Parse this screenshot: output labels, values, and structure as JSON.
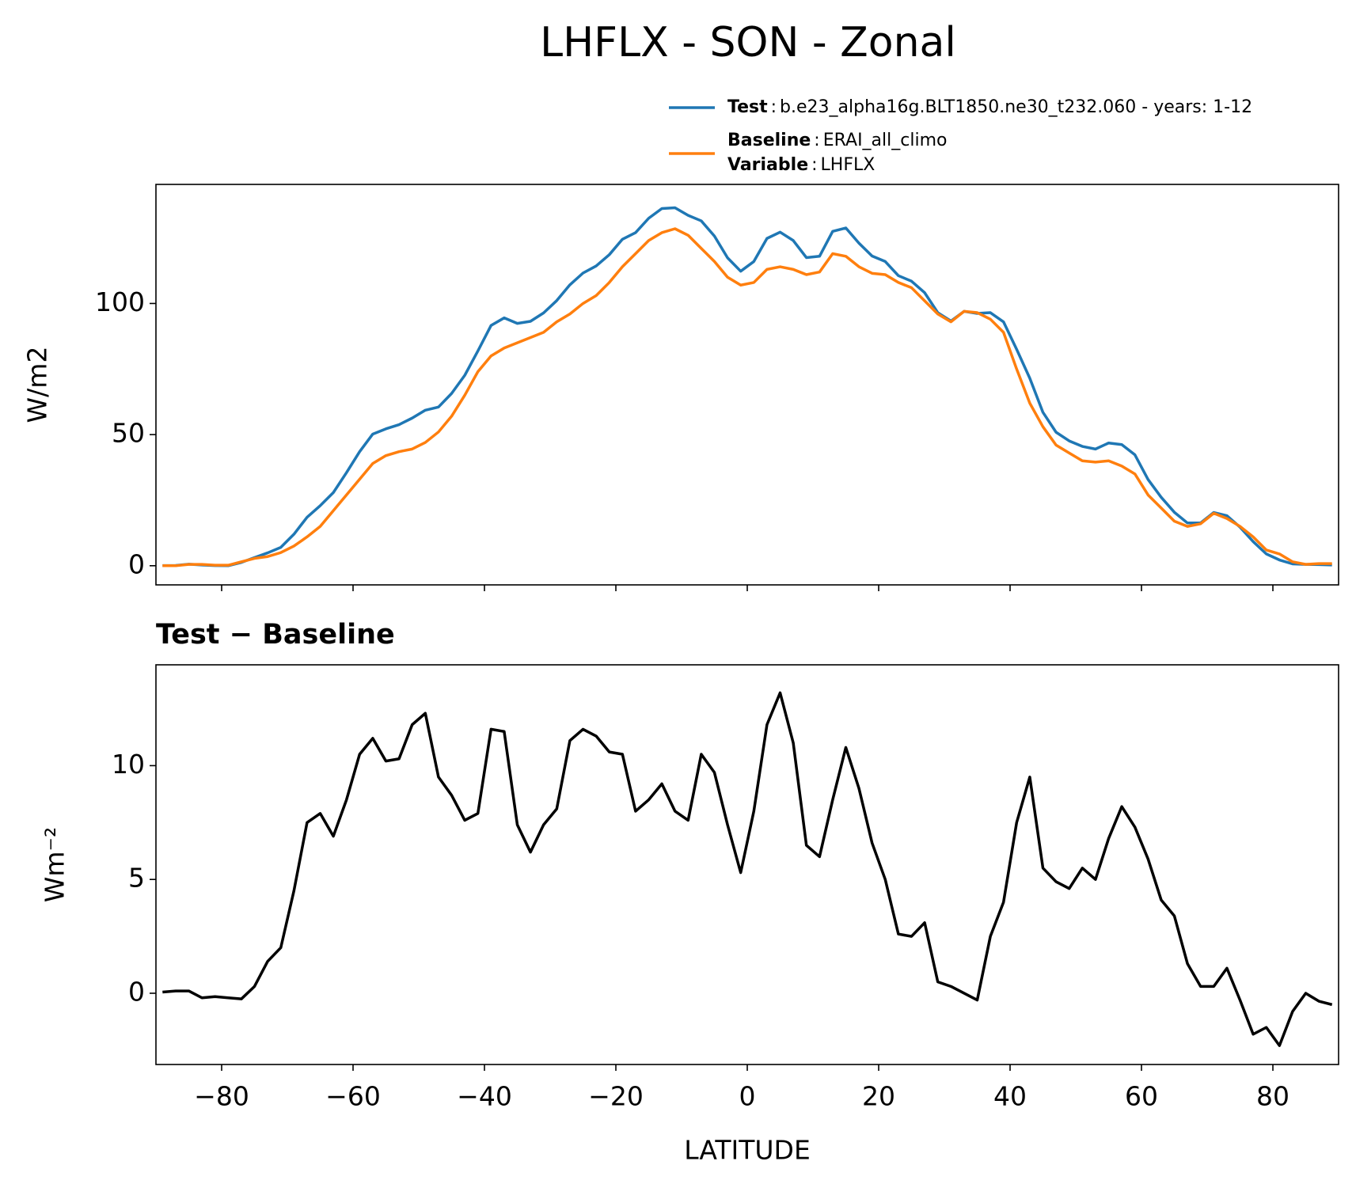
{
  "title": "LHFLX - SON - Zonal",
  "legend": {
    "separator": ":",
    "extra": {
      "name": "Variable",
      "description": "LHFLX"
    }
  },
  "chart_data": [
    {
      "type": "line",
      "ylabel": "W/m2",
      "x": [
        -89,
        -87,
        -85,
        -83,
        -81,
        -79,
        -77,
        -75,
        -73,
        -71,
        -69,
        -67,
        -65,
        -63,
        -61,
        -59,
        -57,
        -55,
        -53,
        -51,
        -49,
        -47,
        -45,
        -43,
        -41,
        -39,
        -37,
        -35,
        -33,
        -31,
        -29,
        -27,
        -25,
        -23,
        -21,
        -19,
        -17,
        -15,
        -13,
        -11,
        -9,
        -7,
        -5,
        -3,
        -1,
        1,
        3,
        5,
        7,
        9,
        11,
        13,
        15,
        17,
        19,
        21,
        23,
        25,
        27,
        29,
        31,
        33,
        35,
        37,
        39,
        41,
        43,
        45,
        47,
        49,
        51,
        53,
        55,
        57,
        59,
        61,
        63,
        65,
        67,
        69,
        71,
        73,
        75,
        77,
        79,
        81,
        83,
        85,
        87,
        89
      ],
      "series": [
        {
          "name": "Test",
          "description": "b.e23_alpha16g.BLT1850.ne30_t232.060 - years: 1-12",
          "color": "#1f77b4",
          "values": [
            0.05,
            0.1,
            0.6,
            0.3,
            0.05,
            0,
            1.25,
            3.1,
            4.9,
            7.0,
            12,
            18.5,
            22.9,
            27.9,
            35.5,
            43.5,
            50.2,
            52.2,
            53.8,
            56.3,
            59.3,
            60.5,
            65.7,
            72.6,
            81.9,
            91.6,
            94.5,
            92.4,
            93.2,
            96.4,
            101.1,
            107.1,
            111.6,
            114.3,
            118.6,
            124.5,
            127,
            132.5,
            136.2,
            136.5,
            133.6,
            131.5,
            125.7,
            117.4,
            112.3,
            116,
            124.8,
            127.2,
            124,
            117.5,
            118,
            127.5,
            128.8,
            123,
            118.1,
            116,
            110.6,
            108.5,
            104.1,
            96.5,
            93.3,
            97,
            96.2,
            96.5,
            93,
            82.5,
            71.5,
            58.5,
            50.9,
            47.6,
            45.5,
            44.5,
            46.8,
            46.2,
            42.3,
            32.9,
            26.1,
            20.4,
            16.3,
            16.3,
            20.3,
            19.1,
            14.7,
            9.2,
            4.5,
            2.2,
            0.7,
            0.5,
            0.45,
            0.3
          ]
        },
        {
          "name": "Baseline",
          "description": "ERAI_all_climo",
          "color": "#ff7f0e",
          "values": [
            0,
            0,
            0.5,
            0.5,
            0.2,
            0.2,
            1.5,
            2.8,
            3.5,
            5,
            7.5,
            11,
            15,
            21,
            27,
            33,
            39,
            42,
            43.5,
            44.5,
            47,
            51,
            57,
            65,
            74,
            80,
            83,
            85,
            87,
            89,
            93,
            96,
            100,
            103,
            108,
            114,
            119,
            124,
            127,
            128.5,
            126,
            121,
            116,
            110,
            107,
            108,
            113,
            114,
            113,
            111,
            112,
            119,
            118,
            114,
            111.5,
            111,
            108,
            106,
            101,
            96,
            93,
            97,
            96.5,
            94,
            89,
            75,
            62,
            53,
            46,
            43,
            40,
            39.5,
            40,
            38,
            35,
            27,
            22,
            17,
            15,
            16,
            20,
            18,
            15,
            11,
            6,
            4.5,
            1.5,
            0.5,
            0.8,
            0.8
          ]
        }
      ],
      "xlim": [
        -90,
        90
      ],
      "xticks": [
        -80,
        -60,
        -40,
        -20,
        0,
        20,
        40,
        60,
        80
      ],
      "ylim": [
        -7.3,
        145.4
      ],
      "yticks": [
        0,
        50,
        100
      ]
    },
    {
      "type": "line",
      "title": "Test − Baseline",
      "ylabel": "Wm⁻²",
      "xlabel": "LATITUDE",
      "x": [
        -89,
        -87,
        -85,
        -83,
        -81,
        -79,
        -77,
        -75,
        -73,
        -71,
        -69,
        -67,
        -65,
        -63,
        -61,
        -59,
        -57,
        -55,
        -53,
        -51,
        -49,
        -47,
        -45,
        -43,
        -41,
        -39,
        -37,
        -35,
        -33,
        -31,
        -29,
        -27,
        -25,
        -23,
        -21,
        -19,
        -17,
        -15,
        -13,
        -11,
        -9,
        -7,
        -5,
        -3,
        -1,
        1,
        3,
        5,
        7,
        9,
        11,
        13,
        15,
        17,
        19,
        21,
        23,
        25,
        27,
        29,
        31,
        33,
        35,
        37,
        39,
        41,
        43,
        45,
        47,
        49,
        51,
        53,
        55,
        57,
        59,
        61,
        63,
        65,
        67,
        69,
        71,
        73,
        75,
        77,
        79,
        81,
        83,
        85,
        87,
        89
      ],
      "series": [
        {
          "color": "#000000",
          "values": [
            0.05,
            0.1,
            0.1,
            -0.2,
            -0.15,
            -0.2,
            -0.25,
            0.3,
            1.4,
            2.0,
            4.5,
            7.5,
            7.9,
            6.9,
            8.5,
            10.5,
            11.2,
            10.2,
            10.3,
            11.8,
            12.3,
            9.5,
            8.7,
            7.6,
            7.9,
            11.6,
            11.5,
            7.4,
            6.2,
            7.4,
            8.1,
            11.1,
            11.6,
            11.3,
            10.6,
            10.5,
            8.0,
            8.5,
            9.2,
            8.0,
            7.6,
            10.5,
            9.7,
            7.4,
            5.3,
            8.0,
            11.8,
            13.2,
            11.0,
            6.5,
            6.0,
            8.5,
            10.8,
            9.0,
            6.6,
            5.0,
            2.6,
            2.5,
            3.1,
            0.5,
            0.3,
            0.0,
            -0.3,
            2.5,
            4.0,
            7.5,
            9.5,
            5.5,
            4.9,
            4.6,
            5.5,
            5.0,
            6.8,
            8.2,
            7.3,
            5.9,
            4.1,
            3.4,
            1.3,
            0.3,
            0.3,
            1.1,
            -0.3,
            -1.8,
            -1.5,
            -2.3,
            -0.8,
            0.0,
            -0.35,
            -0.5
          ]
        }
      ],
      "xlim": [
        -90,
        90
      ],
      "xticks": [
        {
          "value": -80,
          "label": "−80"
        },
        {
          "value": -60,
          "label": "−60"
        },
        {
          "value": -40,
          "label": "−40"
        },
        {
          "value": -20,
          "label": "−20"
        },
        0,
        20,
        40,
        60,
        80
      ],
      "ylim": [
        -3.13,
        14.43
      ],
      "yticks": [
        0,
        5,
        10
      ]
    }
  ]
}
